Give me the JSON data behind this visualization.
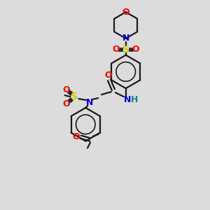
{
  "bg_color": "#dcdcdc",
  "bond_color": "#1a1a1a",
  "colors": {
    "O": "#ff0000",
    "N": "#0000dd",
    "S": "#cccc00",
    "H": "#008b8b",
    "C": "#1a1a1a"
  },
  "figsize": [
    3.0,
    3.0
  ],
  "dpi": 100,
  "lw": 1.6,
  "lw_thin": 1.2
}
